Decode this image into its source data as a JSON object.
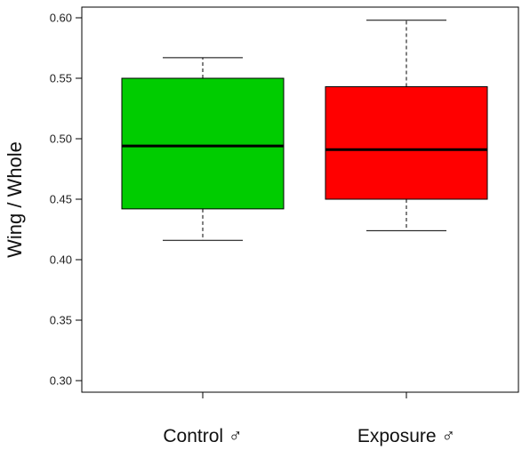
{
  "chart_data": {
    "type": "box",
    "ylabel": "Wing / Whole",
    "ylim": [
      0.3,
      0.6
    ],
    "yticks": [
      "0.30",
      "0.35",
      "0.40",
      "0.45",
      "0.50",
      "0.55",
      "0.60"
    ],
    "grid": false,
    "categories": [
      "Control ♂",
      "Exposure ♂"
    ],
    "boxes": [
      {
        "category": "Control ♂",
        "color": "#00cc00",
        "whisker_low": 0.416,
        "q1": 0.442,
        "median": 0.494,
        "q3": 0.55,
        "whisker_high": 0.567
      },
      {
        "category": "Exposure ♂",
        "color": "#ff0000",
        "whisker_low": 0.424,
        "q1": 0.45,
        "median": 0.491,
        "q3": 0.543,
        "whisker_high": 0.598
      }
    ]
  }
}
